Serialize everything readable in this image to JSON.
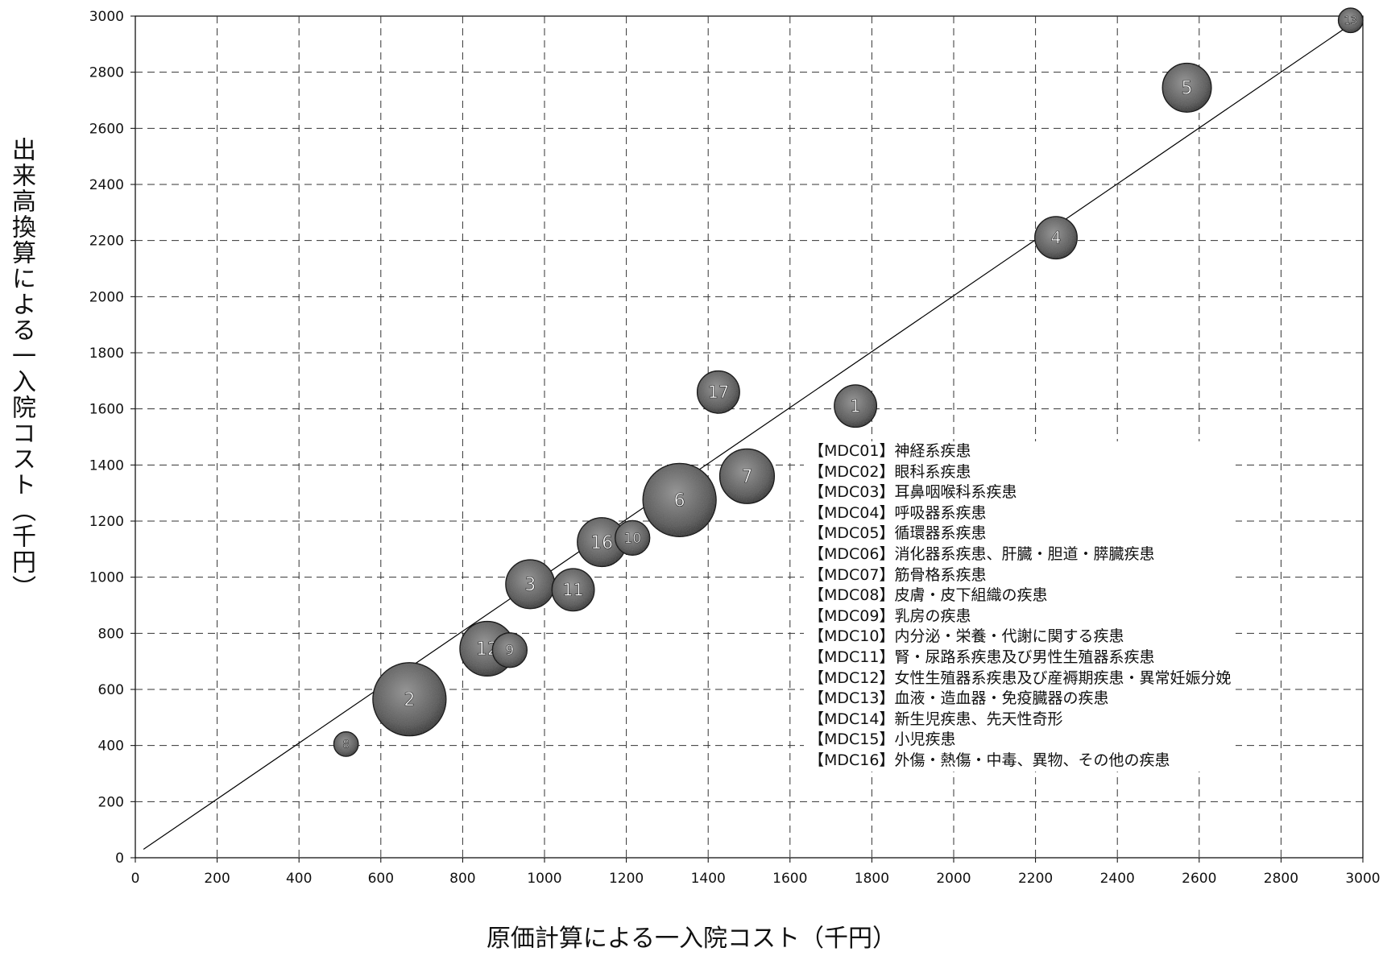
{
  "chart_data": {
    "type": "bubble",
    "title": "",
    "xlabel": "原価計算による一入院コスト（千円）",
    "ylabel": "出来高換算による一入院コスト（千円）",
    "xlim": [
      0,
      3000
    ],
    "ylim": [
      0,
      3000
    ],
    "x_ticks": [
      "0",
      "200",
      "400",
      "600",
      "800",
      "1000",
      "1200",
      "1400",
      "1600",
      "1800",
      "2000",
      "2200",
      "2400",
      "2600",
      "2800",
      "3000"
    ],
    "y_ticks": [
      "0",
      "200",
      "400",
      "600",
      "800",
      "1000",
      "1200",
      "1400",
      "1600",
      "1800",
      "2000",
      "2200",
      "2400",
      "2600",
      "2800",
      "3000"
    ],
    "grid": true,
    "reference_line": "y = x",
    "legend_position": "lower-right",
    "legend": [
      "【MDC01】神経系疾患",
      "【MDC02】眼科系疾患",
      "【MDC03】耳鼻咽喉科系疾患",
      "【MDC04】呼吸器系疾患",
      "【MDC05】循環器系疾患",
      "【MDC06】消化器系疾患、肝臓・胆道・膵臓疾患",
      "【MDC07】筋骨格系疾患",
      "【MDC08】皮膚・皮下組織の疾患",
      "【MDC09】乳房の疾患",
      "【MDC10】内分泌・栄養・代謝に関する疾患",
      "【MDC11】腎・尿路系疾患及び男性生殖器系疾患",
      "【MDC12】女性生殖器系疾患及び産褥期疾患・異常妊娠分娩",
      "【MDC13】血液・造血器・免疫臓器の疾患",
      "【MDC14】新生児疾患、先天性奇形",
      "【MDC15】小児疾患",
      "【MDC16】外傷・熱傷・中毒、異物、その他の疾患"
    ],
    "points": [
      {
        "label": "1",
        "x": 1760,
        "y": 1610,
        "size": 3
      },
      {
        "label": "2",
        "x": 670,
        "y": 565,
        "size": 9
      },
      {
        "label": "3",
        "x": 965,
        "y": 975,
        "size": 4
      },
      {
        "label": "4",
        "x": 2250,
        "y": 2210,
        "size": 3
      },
      {
        "label": "5",
        "x": 2570,
        "y": 2745,
        "size": 4
      },
      {
        "label": "6",
        "x": 1330,
        "y": 1275,
        "size": 9
      },
      {
        "label": "7",
        "x": 1495,
        "y": 1360,
        "size": 5
      },
      {
        "label": "8",
        "x": 515,
        "y": 405,
        "size": 1
      },
      {
        "label": "9",
        "x": 915,
        "y": 740,
        "size": 2
      },
      {
        "label": "10",
        "x": 1215,
        "y": 1140,
        "size": 2
      },
      {
        "label": "11",
        "x": 1070,
        "y": 955,
        "size": 3
      },
      {
        "label": "12",
        "x": 860,
        "y": 745,
        "size": 5
      },
      {
        "label": "13",
        "x": 2970,
        "y": 2985,
        "size": 1
      },
      {
        "label": "16",
        "x": 1140,
        "y": 1125,
        "size": 4
      },
      {
        "label": "17",
        "x": 1425,
        "y": 1660,
        "size": 3
      }
    ]
  }
}
